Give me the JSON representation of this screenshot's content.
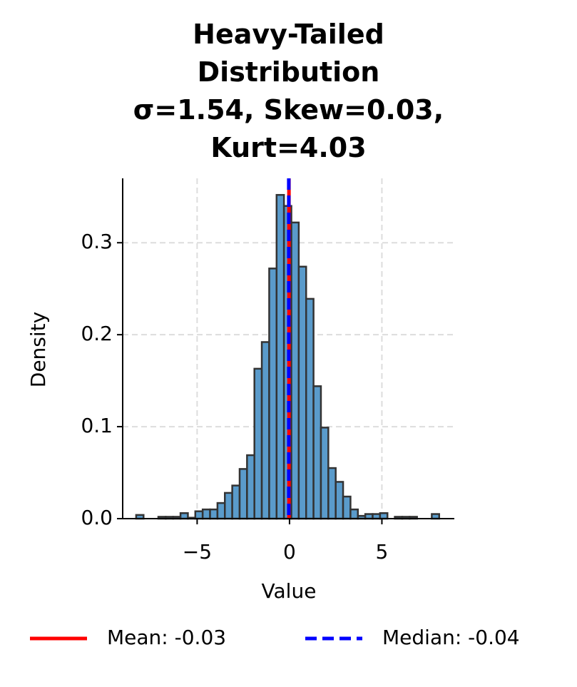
{
  "chart_data": {
    "type": "histogram",
    "title": "Heavy-Tailed\nDistribution\nσ=1.54, Skew=0.03,\nKurt=4.03",
    "x_label": "Value",
    "y_label": "Density",
    "bins": [
      -8.3,
      -7.9,
      -7.5,
      -7.1,
      -6.7,
      -6.3,
      -5.9,
      -5.5,
      -5.1,
      -4.7,
      -4.3,
      -3.9,
      -3.5,
      -3.1,
      -2.7,
      -2.3,
      -1.9,
      -1.5,
      -1.1,
      -0.7,
      -0.3,
      0.1,
      0.5,
      0.9,
      1.3,
      1.7,
      2.1,
      2.5,
      2.9,
      3.3,
      3.7,
      4.1,
      4.5,
      4.9,
      5.3,
      5.7,
      6.1,
      6.5,
      6.9,
      7.3,
      7.7,
      8.1
    ],
    "values": [
      0.004,
      0,
      0,
      0.002,
      0.002,
      0.002,
      0.006,
      0.001,
      0.008,
      0.01,
      0.01,
      0.017,
      0.028,
      0.036,
      0.054,
      0.069,
      0.163,
      0.192,
      0.272,
      0.352,
      0.34,
      0.322,
      0.274,
      0.239,
      0.144,
      0.099,
      0.055,
      0.04,
      0.024,
      0.01,
      0.003,
      0.005,
      0.005,
      0.006,
      0,
      0.002,
      0.002,
      0.002,
      0,
      0,
      0.005
    ],
    "color": "#5a9bcb",
    "edgecolor": "#333333",
    "lines": [
      {
        "name": "Mean: -0.03",
        "value": -0.03,
        "color": "#ff0000",
        "style": "solid"
      },
      {
        "name": "Median: -0.04",
        "value": -0.04,
        "color": "#0000ff",
        "style": "dashed"
      }
    ],
    "xlim": [
      -9.03,
      8.92
    ],
    "ylim": [
      0,
      0.37
    ],
    "xticks": [
      {
        "value": -5,
        "label": "−5"
      },
      0,
      5
    ],
    "yticks": [
      {
        "value": 0,
        "label": "0.0"
      },
      0.1,
      0.2,
      0.3
    ],
    "grid": true
  }
}
